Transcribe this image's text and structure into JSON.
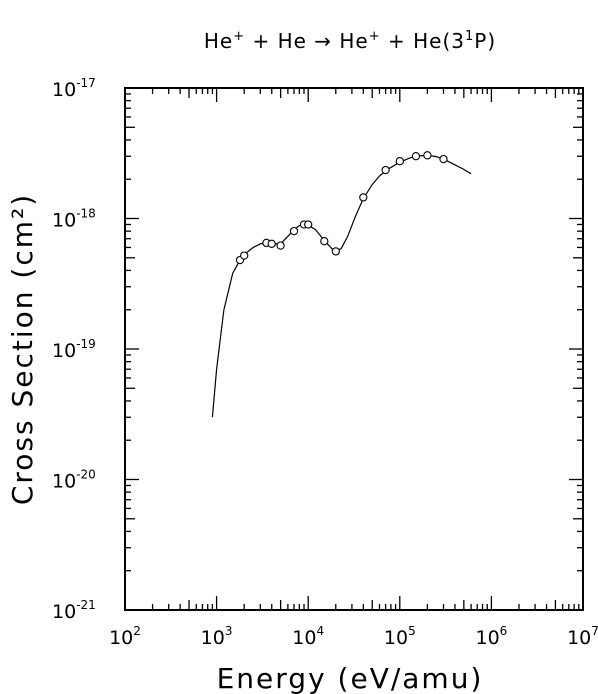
{
  "chart_data": {
    "type": "scatter",
    "title": "He⁺ + He → He⁺ + He(3¹P)",
    "xlabel": "Energy (eV/amu)",
    "ylabel": "Cross Section (cm²)",
    "x_scale": "log",
    "y_scale": "log",
    "xlim": [
      100,
      10000000
    ],
    "ylim": [
      1e-21,
      1e-17
    ],
    "grid": false,
    "x_ticks": [
      {
        "value": 100,
        "base": "10",
        "exp": "2"
      },
      {
        "value": 1000,
        "base": "10",
        "exp": "3"
      },
      {
        "value": 10000,
        "base": "10",
        "exp": "4"
      },
      {
        "value": 100000,
        "base": "10",
        "exp": "5"
      },
      {
        "value": 1000000,
        "base": "10",
        "exp": "6"
      },
      {
        "value": 10000000,
        "base": "10",
        "exp": "7"
      }
    ],
    "y_ticks": [
      {
        "value": 1e-21,
        "base": "10",
        "exp": "-21"
      },
      {
        "value": 1e-20,
        "base": "10",
        "exp": "-20"
      },
      {
        "value": 1e-19,
        "base": "10",
        "exp": "-19"
      },
      {
        "value": 1e-18,
        "base": "10",
        "exp": "-18"
      },
      {
        "value": 1e-17,
        "base": "10",
        "exp": "-17"
      }
    ],
    "series": [
      {
        "style": "line",
        "points": [
          [
            900,
            3e-20
          ],
          [
            1000,
            7e-20
          ],
          [
            1200,
            2e-19
          ],
          [
            1500,
            3.8e-19
          ],
          [
            1800,
            4.8e-19
          ],
          [
            2000,
            5.3e-19
          ],
          [
            2500,
            6e-19
          ],
          [
            3000,
            6.4e-19
          ],
          [
            3500,
            6.5e-19
          ],
          [
            4000,
            6.4e-19
          ],
          [
            5000,
            6.4e-19
          ],
          [
            6000,
            7.3e-19
          ],
          [
            7000,
            8.2e-19
          ],
          [
            8000,
            8.8e-19
          ],
          [
            9000,
            9e-19
          ],
          [
            10000,
            8.9e-19
          ],
          [
            12000,
            8.2e-19
          ],
          [
            15000,
            6.8e-19
          ],
          [
            18000,
            5.9e-19
          ],
          [
            20000,
            5.6e-19
          ],
          [
            23000,
            5.9e-19
          ],
          [
            27000,
            7.3e-19
          ],
          [
            33000,
            1.05e-18
          ],
          [
            40000,
            1.42e-18
          ],
          [
            50000,
            1.82e-18
          ],
          [
            60000,
            2.12e-18
          ],
          [
            75000,
            2.4e-18
          ],
          [
            100000,
            2.7e-18
          ],
          [
            130000,
            2.92e-18
          ],
          [
            160000,
            3.02e-18
          ],
          [
            200000,
            3.05e-18
          ],
          [
            250000,
            2.98e-18
          ],
          [
            300000,
            2.85e-18
          ],
          [
            400000,
            2.58e-18
          ],
          [
            500000,
            2.38e-18
          ],
          [
            600000,
            2.2e-18
          ]
        ]
      },
      {
        "style": "markers",
        "marker": "circle",
        "points": [
          [
            1800,
            4.8e-19
          ],
          [
            2000,
            5.2e-19
          ],
          [
            3500,
            6.5e-19
          ],
          [
            4000,
            6.4e-19
          ],
          [
            5000,
            6.2e-19
          ],
          [
            7000,
            8e-19
          ],
          [
            9000,
            9e-19
          ],
          [
            10000,
            9e-19
          ],
          [
            15000,
            6.7e-19
          ],
          [
            20000,
            5.6e-19
          ],
          [
            40000,
            1.45e-18
          ],
          [
            70000,
            2.35e-18
          ],
          [
            100000,
            2.75e-18
          ],
          [
            150000,
            3e-18
          ],
          [
            200000,
            3.05e-18
          ],
          [
            300000,
            2.85e-18
          ]
        ]
      }
    ]
  },
  "title_parts": {
    "p1": "He",
    "p1_sup": "+",
    "p2": " + He → He",
    "p2_sup": "+",
    "p3": " + He(3",
    "p3_sup": "1",
    "p4": "P)"
  }
}
